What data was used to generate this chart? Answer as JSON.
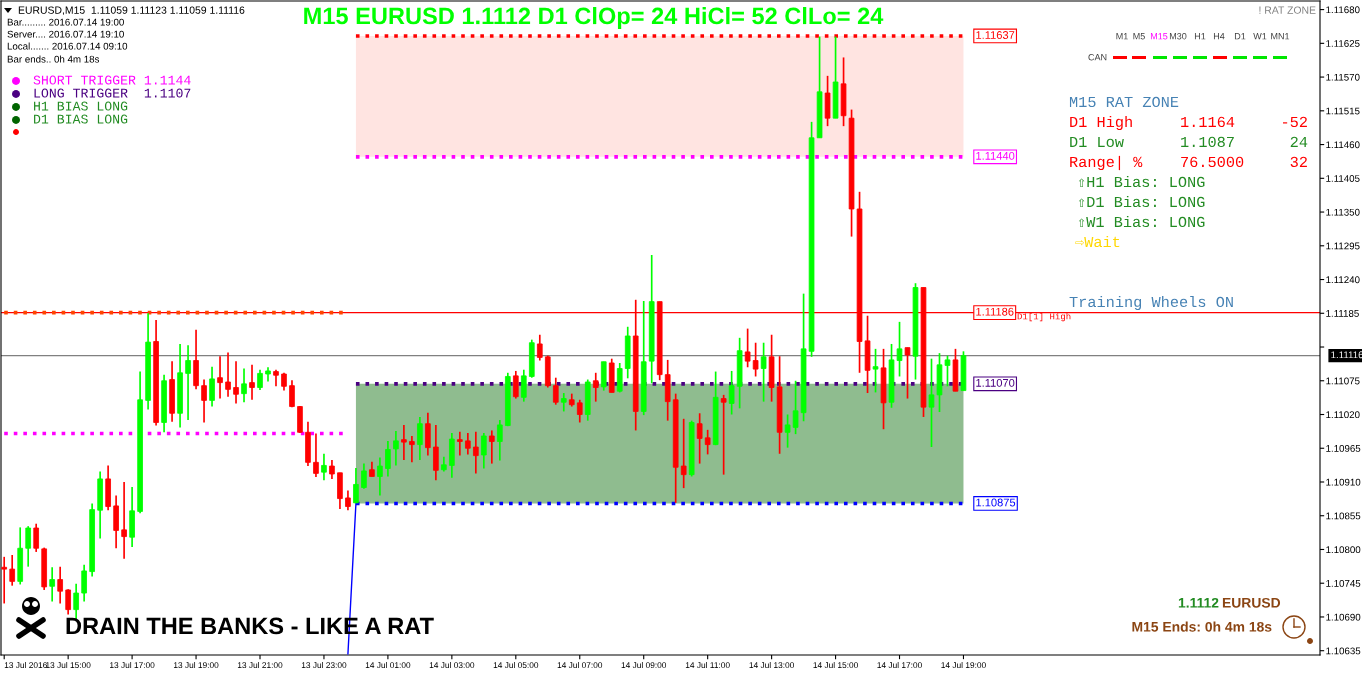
{
  "chart_data": {
    "type": "candlestick",
    "title": "M15 EURUSD 1.1112 D1 ClOp= 24 HiCl= 52 ClLo= 24",
    "x": [
      "2016-07-13T13:00",
      "2016-07-13T13:15",
      "2016-07-13T13:30",
      "2016-07-13T13:45",
      "2016-07-13T14:00",
      "2016-07-13T14:15",
      "2016-07-13T14:30",
      "2016-07-13T14:45",
      "2016-07-13T15:00",
      "2016-07-13T15:15",
      "2016-07-13T15:30",
      "2016-07-13T15:45",
      "2016-07-13T16:00",
      "2016-07-13T16:15",
      "2016-07-13T16:30",
      "2016-07-13T16:45",
      "2016-07-13T17:00",
      "2016-07-13T17:15",
      "2016-07-13T17:30",
      "2016-07-13T17:45",
      "2016-07-13T18:00",
      "2016-07-13T18:15",
      "2016-07-13T18:30",
      "2016-07-13T18:45",
      "2016-07-13T19:00",
      "2016-07-13T19:15",
      "2016-07-13T19:30",
      "2016-07-13T19:45",
      "2016-07-13T20:00",
      "2016-07-13T20:15",
      "2016-07-13T20:30",
      "2016-07-13T20:45",
      "2016-07-13T21:00",
      "2016-07-13T21:15",
      "2016-07-13T21:30",
      "2016-07-13T21:45",
      "2016-07-13T22:00",
      "2016-07-13T22:15",
      "2016-07-13T22:30",
      "2016-07-13T22:45",
      "2016-07-13T23:00",
      "2016-07-13T23:15",
      "2016-07-13T23:30",
      "2016-07-13T23:45",
      "2016-07-14T00:00",
      "2016-07-14T00:15",
      "2016-07-14T00:30",
      "2016-07-14T00:45",
      "2016-07-14T01:00",
      "2016-07-14T01:15",
      "2016-07-14T01:30",
      "2016-07-14T01:45",
      "2016-07-14T02:00",
      "2016-07-14T02:15",
      "2016-07-14T02:30",
      "2016-07-14T02:45",
      "2016-07-14T03:00",
      "2016-07-14T03:15",
      "2016-07-14T03:30",
      "2016-07-14T03:45",
      "2016-07-14T04:00",
      "2016-07-14T04:15",
      "2016-07-14T04:30",
      "2016-07-14T04:45",
      "2016-07-14T05:00",
      "2016-07-14T05:15",
      "2016-07-14T05:30",
      "2016-07-14T05:45",
      "2016-07-14T06:00",
      "2016-07-14T06:15",
      "2016-07-14T06:30",
      "2016-07-14T06:45",
      "2016-07-14T07:00",
      "2016-07-14T07:15",
      "2016-07-14T07:30",
      "2016-07-14T07:45",
      "2016-07-14T08:00",
      "2016-07-14T08:15",
      "2016-07-14T08:30",
      "2016-07-14T08:45",
      "2016-07-14T09:00",
      "2016-07-14T09:15",
      "2016-07-14T09:30",
      "2016-07-14T09:45",
      "2016-07-14T10:00",
      "2016-07-14T10:15",
      "2016-07-14T10:30",
      "2016-07-14T10:45",
      "2016-07-14T11:00",
      "2016-07-14T11:15",
      "2016-07-14T11:30",
      "2016-07-14T11:45",
      "2016-07-14T12:00",
      "2016-07-14T12:15",
      "2016-07-14T12:30",
      "2016-07-14T12:45",
      "2016-07-14T13:00",
      "2016-07-14T13:15",
      "2016-07-14T13:30",
      "2016-07-14T13:45",
      "2016-07-14T14:00",
      "2016-07-14T14:15",
      "2016-07-14T14:30",
      "2016-07-14T14:45",
      "2016-07-14T15:00",
      "2016-07-14T15:15",
      "2016-07-14T15:30",
      "2016-07-14T15:45",
      "2016-07-14T16:00",
      "2016-07-14T16:15",
      "2016-07-14T16:30",
      "2016-07-14T16:45",
      "2016-07-14T17:00",
      "2016-07-14T17:15",
      "2016-07-14T17:30",
      "2016-07-14T17:45",
      "2016-07-14T18:00",
      "2016-07-14T18:15",
      "2016-07-14T18:30",
      "2016-07-14T18:45",
      "2016-07-14T19:00"
    ],
    "ohlc": [
      [
        1.10771,
        1.10788,
        1.10712,
        1.10768
      ],
      [
        1.10768,
        1.10791,
        1.10741,
        1.10748
      ],
      [
        1.10748,
        1.10836,
        1.10743,
        1.10802
      ],
      [
        1.10802,
        1.10838,
        1.10772,
        1.10835
      ],
      [
        1.10835,
        1.10842,
        1.10796,
        1.10802
      ],
      [
        1.10801,
        1.10803,
        1.10734,
        1.10739
      ],
      [
        1.1074,
        1.10771,
        1.10715,
        1.10751
      ],
      [
        1.10751,
        1.10772,
        1.10712,
        1.10732
      ],
      [
        1.10734,
        1.10735,
        1.10694,
        1.10702
      ],
      [
        1.10702,
        1.10744,
        1.10685,
        1.10729
      ],
      [
        1.10729,
        1.10775,
        1.10715,
        1.10765
      ],
      [
        1.10764,
        1.10875,
        1.10756,
        1.10865
      ],
      [
        1.10864,
        1.10927,
        1.10818,
        1.10915
      ],
      [
        1.10915,
        1.10937,
        1.10864,
        1.1087
      ],
      [
        1.10871,
        1.10888,
        1.10802,
        1.10831
      ],
      [
        1.10832,
        1.1091,
        1.10785,
        1.10821
      ],
      [
        1.1082,
        1.10902,
        1.10804,
        1.10863
      ],
      [
        1.10862,
        1.1109,
        1.10859,
        1.11044
      ],
      [
        1.11043,
        1.11185,
        1.11028,
        1.11138
      ],
      [
        1.11139,
        1.11174,
        1.11002,
        1.11007
      ],
      [
        1.11007,
        1.11085,
        1.10991,
        1.11075
      ],
      [
        1.11077,
        1.11107,
        1.11008,
        1.11022
      ],
      [
        1.11022,
        1.11135,
        1.10999,
        1.11088
      ],
      [
        1.11087,
        1.11133,
        1.11011,
        1.11108
      ],
      [
        1.11108,
        1.11158,
        1.11061,
        1.11067
      ],
      [
        1.11067,
        1.11077,
        1.11007,
        1.11043
      ],
      [
        1.11043,
        1.11098,
        1.11033,
        1.11078
      ],
      [
        1.1108,
        1.11115,
        1.11046,
        1.11072
      ],
      [
        1.11073,
        1.11121,
        1.11049,
        1.11061
      ],
      [
        1.11064,
        1.11107,
        1.11038,
        1.11053
      ],
      [
        1.11054,
        1.11095,
        1.1104,
        1.1107
      ],
      [
        1.11072,
        1.11101,
        1.11044,
        1.11064
      ],
      [
        1.11064,
        1.11093,
        1.1106,
        1.11087
      ],
      [
        1.11086,
        1.11097,
        1.11074,
        1.11091
      ],
      [
        1.1109,
        1.11093,
        1.11066,
        1.11084
      ],
      [
        1.11086,
        1.11088,
        1.11059,
        1.11066
      ],
      [
        1.11067,
        1.11076,
        1.11032,
        1.11033
      ],
      [
        1.11033,
        1.11034,
        1.1099,
        1.10991
      ],
      [
        1.10991,
        1.11008,
        1.10936,
        1.10942
      ],
      [
        1.10942,
        1.10989,
        1.10918,
        1.10924
      ],
      [
        1.10926,
        1.10956,
        1.10913,
        1.10937
      ],
      [
        1.10936,
        1.10946,
        1.10915,
        1.10923
      ],
      [
        1.10925,
        1.10925,
        1.10866,
        1.10883
      ],
      [
        1.10884,
        1.10896,
        1.10864,
        1.1087
      ],
      [
        1.10876,
        1.10933,
        1.10876,
        1.10906
      ],
      [
        1.10901,
        1.1094,
        1.10899,
        1.10928
      ],
      [
        1.1093,
        1.10943,
        1.10919,
        1.10919
      ],
      [
        1.10919,
        1.1095,
        1.10888,
        1.10936
      ],
      [
        1.10932,
        1.10977,
        1.10919,
        1.10963
      ],
      [
        1.10964,
        1.10993,
        1.10937,
        1.10977
      ],
      [
        1.10979,
        1.11003,
        1.10946,
        1.10975
      ],
      [
        1.10976,
        1.10985,
        1.10942,
        1.10971
      ],
      [
        1.10971,
        1.11016,
        1.10946,
        1.11005
      ],
      [
        1.11005,
        1.11023,
        1.10953,
        1.10966
      ],
      [
        1.10967,
        1.11003,
        1.10913,
        1.10929
      ],
      [
        1.1093,
        1.10951,
        1.10927,
        1.10938
      ],
      [
        1.10937,
        1.1099,
        1.10917,
        1.1098
      ],
      [
        1.10979,
        1.10992,
        1.10953,
        1.10976
      ],
      [
        1.10977,
        1.1099,
        1.10955,
        1.10965
      ],
      [
        1.10967,
        1.10992,
        1.10924,
        1.10953
      ],
      [
        1.10954,
        1.1099,
        1.10932,
        1.10985
      ],
      [
        1.10985,
        1.10994,
        1.1094,
        1.10976
      ],
      [
        1.10976,
        1.11011,
        1.10945,
        1.11003
      ],
      [
        1.11002,
        1.11088,
        1.11001,
        1.11082
      ],
      [
        1.11083,
        1.11091,
        1.11046,
        1.11049
      ],
      [
        1.11048,
        1.11093,
        1.11041,
        1.11083
      ],
      [
        1.11082,
        1.11142,
        1.1108,
        1.11137
      ],
      [
        1.11135,
        1.1115,
        1.11108,
        1.11113
      ],
      [
        1.11114,
        1.11116,
        1.11064,
        1.11067
      ],
      [
        1.11067,
        1.1108,
        1.11036,
        1.1104
      ],
      [
        1.1104,
        1.11055,
        1.11025,
        1.11046
      ],
      [
        1.11044,
        1.11054,
        1.11033,
        1.11036
      ],
      [
        1.11039,
        1.11044,
        1.11007,
        1.1102
      ],
      [
        1.1102,
        1.11077,
        1.1101,
        1.11073
      ],
      [
        1.11075,
        1.11088,
        1.11041,
        1.11064
      ],
      [
        1.11065,
        1.11106,
        1.11059,
        1.11106
      ],
      [
        1.11104,
        1.11111,
        1.11056,
        1.11056
      ],
      [
        1.11058,
        1.11104,
        1.11056,
        1.11095
      ],
      [
        1.11095,
        1.11163,
        1.11079,
        1.11148
      ],
      [
        1.11148,
        1.11207,
        1.10994,
        1.11025
      ],
      [
        1.11025,
        1.11205,
        1.11019,
        1.11106
      ],
      [
        1.11107,
        1.1128,
        1.11071,
        1.11204
      ],
      [
        1.11204,
        1.11204,
        1.11076,
        1.11085
      ],
      [
        1.11085,
        1.11109,
        1.1101,
        1.11041
      ],
      [
        1.11044,
        1.11054,
        1.10876,
        1.10934
      ],
      [
        1.10936,
        1.11013,
        1.109,
        1.10922
      ],
      [
        1.10922,
        1.1101,
        1.10919,
        1.11007
      ],
      [
        1.11005,
        1.11022,
        1.1094,
        1.10981
      ],
      [
        1.10982,
        1.10995,
        1.10955,
        1.10971
      ],
      [
        1.10971,
        1.1109,
        1.1097,
        1.11048
      ],
      [
        1.11046,
        1.11052,
        1.10922,
        1.1104
      ],
      [
        1.11038,
        1.11091,
        1.1102,
        1.11067
      ],
      [
        1.11066,
        1.11145,
        1.1103,
        1.11124
      ],
      [
        1.11122,
        1.1116,
        1.11097,
        1.11107
      ],
      [
        1.11108,
        1.11137,
        1.11082,
        1.11094
      ],
      [
        1.11095,
        1.11137,
        1.11041,
        1.11114
      ],
      [
        1.11114,
        1.1115,
        1.11041,
        1.11064
      ],
      [
        1.11065,
        1.11115,
        1.10956,
        1.10991
      ],
      [
        1.10991,
        1.1102,
        1.10966,
        1.11003
      ],
      [
        1.10999,
        1.11075,
        1.10988,
        1.11026
      ],
      [
        1.11023,
        1.11217,
        1.11009,
        1.11127
      ],
      [
        1.11123,
        1.11497,
        1.11114,
        1.11471
      ],
      [
        1.11471,
        1.11636,
        1.11471,
        1.11546
      ],
      [
        1.11544,
        1.11572,
        1.1149,
        1.11503
      ],
      [
        1.11503,
        1.11636,
        1.11503,
        1.11562
      ],
      [
        1.11559,
        1.11602,
        1.1149,
        1.11507
      ],
      [
        1.11503,
        1.11517,
        1.1131,
        1.11355
      ],
      [
        1.11355,
        1.11383,
        1.11088,
        1.11139
      ],
      [
        1.1114,
        1.11181,
        1.11055,
        1.11092
      ],
      [
        1.11094,
        1.11127,
        1.11056,
        1.11098
      ],
      [
        1.11096,
        1.11127,
        1.10996,
        1.11039
      ],
      [
        1.1104,
        1.11135,
        1.11031,
        1.11109
      ],
      [
        1.11108,
        1.11171,
        1.11082,
        1.11127
      ],
      [
        1.11129,
        1.11129,
        1.11046,
        1.11117
      ],
      [
        1.11115,
        1.11234,
        1.11077,
        1.11227
      ],
      [
        1.11227,
        1.11227,
        1.11016,
        1.11032
      ],
      [
        1.11032,
        1.11111,
        1.10967,
        1.11052
      ],
      [
        1.11052,
        1.1112,
        1.11024,
        1.11101
      ],
      [
        1.111,
        1.11116,
        1.11066,
        1.11109
      ],
      [
        1.11109,
        1.11127,
        1.11058,
        1.11058
      ],
      [
        1.11059,
        1.11123,
        1.11059,
        1.11116
      ]
    ],
    "colors": [
      "#ff0000",
      "#ff0000",
      "#00ff00",
      "#00ff00",
      "#ff0000",
      "#ff0000",
      "#00ff00",
      "#ff0000",
      "#ff0000",
      "#00ff00",
      "#00ff00",
      "#00ff00",
      "#00ff00",
      "#ff0000",
      "#ff0000",
      "#ff0000",
      "#00ff00",
      "#00ff00",
      "#00ff00",
      "#ff0000",
      "#00ff00",
      "#ff0000",
      "#00ff00",
      "#00ff00",
      "#ff0000",
      "#ff0000",
      "#00ff00",
      "#ff0000",
      "#ff0000",
      "#ff0000",
      "#00ff00",
      "#ff0000",
      "#00ff00",
      "#00ff00",
      "#ff0000",
      "#ff0000",
      "#ff0000",
      "#ff0000",
      "#ff0000",
      "#ff0000",
      "#00ff00",
      "#ff0000",
      "#ff0000",
      "#ff0000",
      "#00ff00",
      "#00ff00",
      "#ff0000",
      "#00ff00",
      "#00ff00",
      "#00ff00",
      "#ff0000",
      "#ff0000",
      "#00ff00",
      "#ff0000",
      "#ff0000",
      "#00ff00",
      "#00ff00",
      "#ff0000",
      "#ff0000",
      "#ff0000",
      "#00ff00",
      "#ff0000",
      "#00ff00",
      "#00ff00",
      "#ff0000",
      "#00ff00",
      "#00ff00",
      "#ff0000",
      "#ff0000",
      "#ff0000",
      "#00ff00",
      "#ff0000",
      "#ff0000",
      "#00ff00",
      "#ff0000",
      "#00ff00",
      "#ff0000",
      "#00ff00",
      "#00ff00",
      "#ff0000",
      "#00ff00",
      "#00ff00",
      "#ff0000",
      "#ff0000",
      "#ff0000",
      "#ff0000",
      "#00ff00",
      "#ff0000",
      "#ff0000",
      "#00ff00",
      "#ff0000",
      "#00ff00",
      "#00ff00",
      "#ff0000",
      "#ff0000",
      "#00ff00",
      "#ff0000",
      "#ff0000",
      "#00ff00",
      "#00ff00",
      "#00ff00",
      "#00ff00",
      "#00ff00",
      "#ff0000",
      "#00ff00",
      "#ff0000",
      "#ff0000",
      "#ff0000",
      "#ff0000",
      "#00ff00",
      "#ff0000",
      "#00ff00",
      "#00ff00",
      "#ff0000",
      "#00ff00",
      "#ff0000",
      "#00ff00",
      "#00ff00",
      "#00ff00",
      "#ff0000",
      "#00ff00"
    ],
    "series": [
      {
        "name": "1.11637",
        "type": "line",
        "color": "#ff0000",
        "line_style": "dotted",
        "x": [
          "2016-07-14T00:00",
          "2016-07-14T19:00"
        ],
        "values": [
          1.11637,
          1.11637
        ]
      },
      {
        "name": "1.11440",
        "type": "line",
        "color": "#ff00ff",
        "line_style": "dotted",
        "x": [
          "2016-07-14T00:00",
          "2016-07-14T19:00"
        ],
        "values": [
          1.1144,
          1.1144
        ]
      },
      {
        "name": "1.11070",
        "type": "line",
        "color": "#4b0082",
        "line_style": "dotted",
        "x": [
          "2016-07-14T00:00",
          "2016-07-14T19:00"
        ],
        "values": [
          1.1107,
          1.1107
        ]
      },
      {
        "name": "1.10875",
        "type": "line",
        "color": "#0000ff",
        "line_style": "dotted",
        "x": [
          "2016-07-14T00:00",
          "2016-07-14T19:00"
        ],
        "values": [
          1.10875,
          1.10875
        ]
      },
      {
        "type": "line",
        "color": "#0000ff",
        "line_style": "solid",
        "x": [
          "2016-07-13T23:45",
          "2016-07-14T00:00"
        ],
        "values": [
          1.1063,
          1.10875
        ]
      },
      {
        "type": "line",
        "color": "#ff4500",
        "line_style": "dotted",
        "x": [
          "2016-07-13T13:00",
          "2016-07-13T23:45"
        ],
        "values": [
          1.11186,
          1.11186
        ]
      },
      {
        "type": "line",
        "color": "#ff00ff",
        "line_style": "dotted",
        "x": [
          "2016-07-13T13:00",
          "2016-07-13T23:45"
        ],
        "values": [
          1.10989,
          1.10989
        ]
      }
    ],
    "bands": [
      {
        "axis": "y",
        "from": 1.1144,
        "to": 1.11637,
        "color": "#ffe4e1"
      },
      {
        "axis": "y",
        "from": 1.10875,
        "to": 1.1107,
        "color": "#8fbc8f"
      }
    ],
    "ref_lines": [
      {
        "axis": "y",
        "value": 1.11116,
        "label": "1.11116",
        "color": "#808080"
      },
      {
        "axis": "y",
        "value": 1.11186,
        "label": "1.11186",
        "color": "#ff0000"
      }
    ],
    "xlim": [
      "2016-07-13T12:54",
      "2016-07-15T06:09"
    ],
    "xticks": [
      {
        "value": "2016-07-13T13:00",
        "label": "13 Jul 2016"
      },
      {
        "value": "2016-07-13T15:00",
        "label": "13 Jul 15:00"
      },
      {
        "value": "2016-07-13T17:00",
        "label": "13 Jul 17:00"
      },
      {
        "value": "2016-07-13T19:00",
        "label": "13 Jul 19:00"
      },
      {
        "value": "2016-07-13T21:00",
        "label": "13 Jul 21:00"
      },
      {
        "value": "2016-07-13T23:00",
        "label": "13 Jul 23:00"
      },
      {
        "value": "2016-07-14T01:00",
        "label": "14 Jul 01:00"
      },
      {
        "value": "2016-07-14T03:00",
        "label": "14 Jul 03:00"
      },
      {
        "value": "2016-07-14T05:00",
        "label": "14 Jul 05:00"
      },
      {
        "value": "2016-07-14T07:00",
        "label": "14 Jul 07:00"
      },
      {
        "value": "2016-07-14T09:00",
        "label": "14 Jul 09:00"
      },
      {
        "value": "2016-07-14T11:00",
        "label": "14 Jul 11:00"
      },
      {
        "value": "2016-07-14T13:00",
        "label": "14 Jul 13:00"
      },
      {
        "value": "2016-07-14T15:00",
        "label": "14 Jul 15:00"
      },
      {
        "value": "2016-07-14T17:00",
        "label": "14 Jul 17:00"
      },
      {
        "value": "2016-07-14T19:00",
        "label": "14 Jul 19:00"
      }
    ],
    "ylim": [
      1.10628,
      1.11694
    ],
    "yticks": [
      {
        "value": 1.1168,
        "label": "1.11680"
      },
      {
        "value": 1.11625,
        "label": "1.11625"
      },
      {
        "value": 1.1157,
        "label": "1.11570"
      },
      {
        "value": 1.11515,
        "label": "1.11515"
      },
      {
        "value": 1.1146,
        "label": "1.11460"
      },
      {
        "value": 1.11405,
        "label": "1.11405"
      },
      {
        "value": 1.1135,
        "label": "1.11350"
      },
      {
        "value": 1.11295,
        "label": "1.11295"
      },
      {
        "value": 1.1124,
        "label": "1.11240"
      },
      {
        "value": 1.11185,
        "label": "1.11185"
      },
      {
        "value": 1.1113,
        "label": null
      },
      {
        "value": 1.11075,
        "label": "1.11075"
      },
      {
        "value": 1.1102,
        "label": "1.11020"
      },
      {
        "value": 1.10965,
        "label": "1.10965"
      },
      {
        "value": 1.1091,
        "label": "1.10910"
      },
      {
        "value": 1.10855,
        "label": "1.10855"
      },
      {
        "value": 1.108,
        "label": "1.10800"
      },
      {
        "value": 1.10745,
        "label": "1.10745"
      },
      {
        "value": 1.1069,
        "label": "1.10690"
      },
      {
        "value": 1.10635,
        "label": "1.10635"
      }
    ],
    "annotations": [
      "EURUSD,M15  1.11059 1.11123 1.11059 1.11116",
      "Bar......... 2016.07.14 19:00",
      "Server.... 2016.07.14 19:10",
      "Local....... 2016.07.14 09:10",
      "Bar ends.. 0h 4m 18s",
      "SHORT TRIGGER 1.1144",
      "LONG TRIGGER  1.1107",
      "H1 BIAS LONG",
      "D1 BIAS LONG",
      "! RAT ZONE",
      "M1",
      "M5",
      "M15",
      "M30",
      "H1",
      "H4",
      "D1",
      "W1",
      "MN1",
      "CAN",
      "M15 RAT ZONE",
      "D1 High",
      "1.1164",
      "-52",
      "D1 Low",
      "1.1087",
      "24",
      "Range| %",
      "76.5000",
      "32",
      "⇧H1 Bias: LONG",
      "⇧D1 Bias: LONG",
      "⇧W1 Bias: LONG",
      "⇨Wait",
      "Training Wheels ON",
      "D1[1] High",
      "1.1112",
      "EURUSD",
      "M15 Ends: 0h 4m 18s",
      "DRAIN THE BANKS - LIKE A RAT"
    ]
  }
}
